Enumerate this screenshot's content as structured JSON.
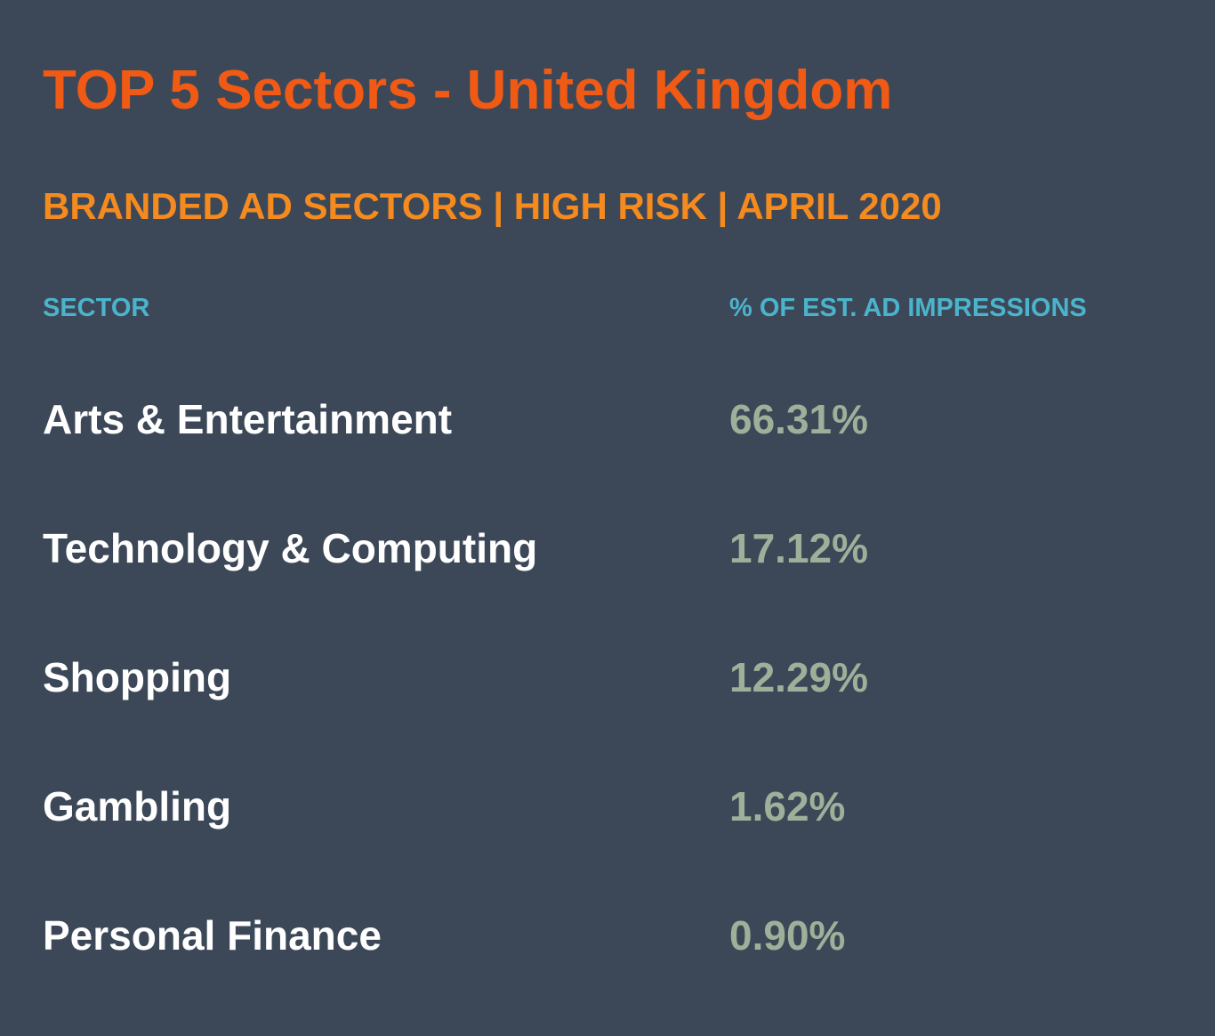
{
  "header": {
    "title": "TOP 5 Sectors - United Kingdom",
    "subtitle": "BRANDED AD SECTORS | HIGH RISK | APRIL 2020"
  },
  "table": {
    "columns": [
      "SECTOR",
      "% OF EST. AD IMPRESSIONS"
    ],
    "rows": [
      [
        "Arts & Entertainment",
        "66.31%"
      ],
      [
        "Technology & Computing",
        "17.12%"
      ],
      [
        "Shopping",
        "12.29%"
      ],
      [
        "Gambling",
        "1.62%"
      ],
      [
        "Personal Finance",
        "0.90%"
      ]
    ]
  }
}
